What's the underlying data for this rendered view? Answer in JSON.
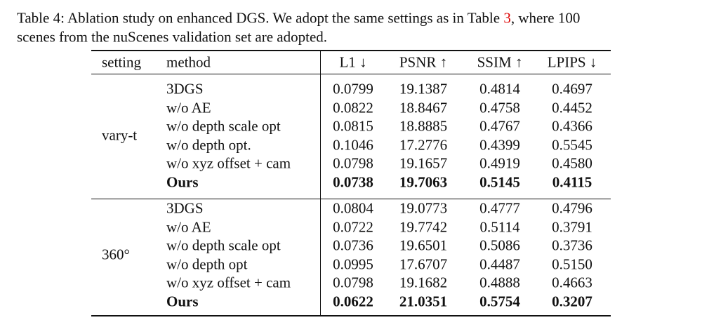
{
  "caption": {
    "part1": "Table 4: Ablation study on enhanced DGS. We adopt the same settings as in Table ",
    "ref": "3",
    "part2": ", where 100",
    "line2": "scenes from the nuScenes validation set are adopted."
  },
  "table": {
    "header": [
      "setting",
      "method",
      "L1 ↓",
      "PSNR ↑",
      "SSIM ↑",
      "LPIPS ↓"
    ],
    "groups": [
      {
        "setting": "vary-t",
        "rows": [
          {
            "method": "3DGS",
            "values": [
              "0.0799",
              "19.1387",
              "0.4814",
              "0.4697"
            ]
          },
          {
            "method": "w/o AE",
            "values": [
              "0.0822",
              "18.8467",
              "0.4758",
              "0.4452"
            ]
          },
          {
            "method": "w/o depth scale opt",
            "values": [
              "0.0815",
              "18.8885",
              "0.4767",
              "0.4366"
            ]
          },
          {
            "method": "w/o depth opt.",
            "values": [
              "0.1046",
              "17.2776",
              "0.4399",
              "0.5545"
            ]
          },
          {
            "method": "w/o xyz offset + cam",
            "values": [
              "0.0798",
              "19.1657",
              "0.4919",
              "0.4580"
            ]
          },
          {
            "method": "Ours",
            "values": [
              "0.0738",
              "19.7063",
              "0.5145",
              "0.4115"
            ]
          }
        ]
      },
      {
        "setting": "360°",
        "rows": [
          {
            "method": "3DGS",
            "values": [
              "0.0804",
              "19.0773",
              "0.4777",
              "0.4796"
            ]
          },
          {
            "method": "w/o AE",
            "values": [
              "0.0722",
              "19.7742",
              "0.5114",
              "0.3791"
            ]
          },
          {
            "method": "w/o depth scale opt",
            "values": [
              "0.0736",
              "19.6501",
              "0.5086",
              "0.3736"
            ]
          },
          {
            "method": "w/o depth opt",
            "values": [
              "0.0995",
              "17.6707",
              "0.4487",
              "0.5150"
            ]
          },
          {
            "method": "w/o xyz offset + cam",
            "values": [
              "0.0798",
              "19.1682",
              "0.4888",
              "0.4663"
            ]
          },
          {
            "method": "Ours",
            "values": [
              "0.0622",
              "21.0351",
              "0.5754",
              "0.3207"
            ]
          }
        ]
      }
    ]
  }
}
